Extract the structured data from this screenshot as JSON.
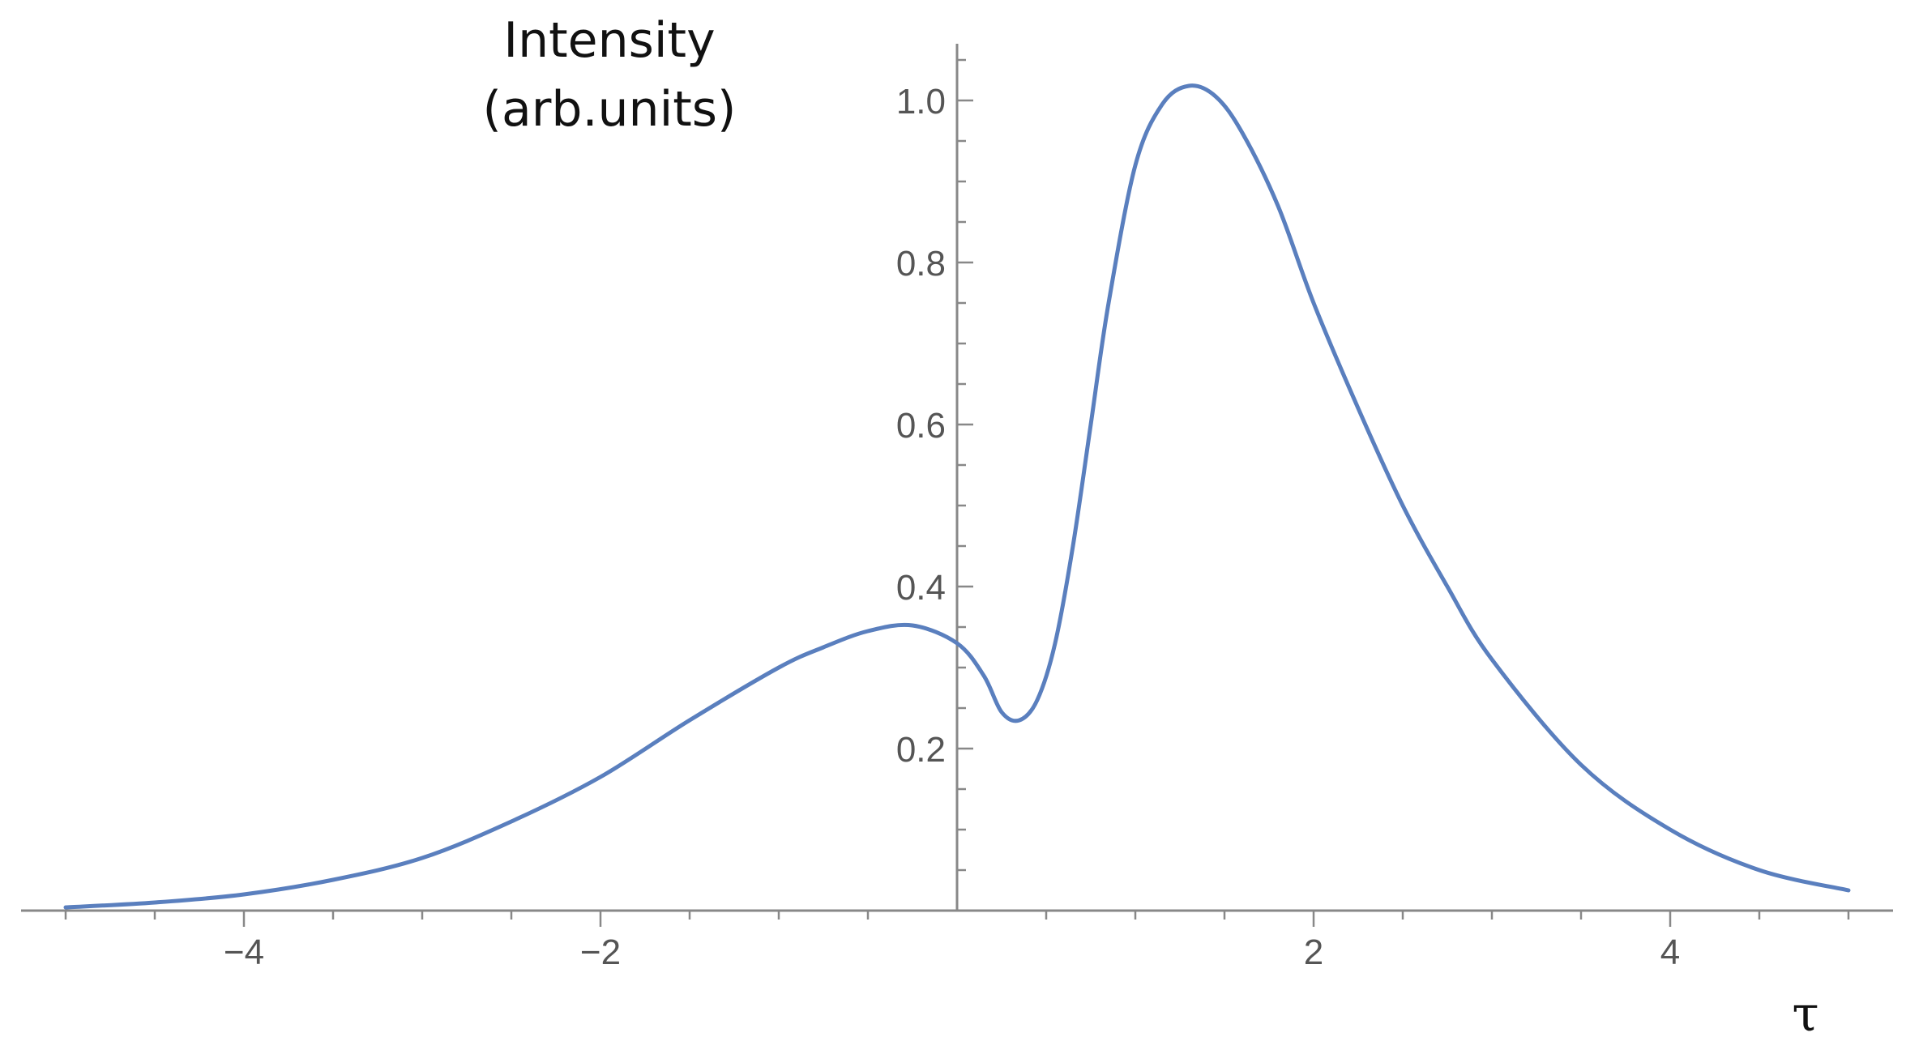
{
  "chart_data": {
    "type": "line",
    "ylabel_line1": "Intensity",
    "ylabel_line2": "(arb.units)",
    "xlabel": "τ",
    "xlim": [
      -5.25,
      5.25
    ],
    "ylim": [
      0,
      1.07
    ],
    "x_ticks": [
      -4,
      -2,
      2,
      4
    ],
    "x_tick_labels": [
      "−4",
      "−2",
      "2",
      "4"
    ],
    "x_minor_step": 0.5,
    "y_ticks": [
      0.2,
      0.4,
      0.6,
      0.8,
      1.0
    ],
    "y_tick_labels": [
      "0.2",
      "0.4",
      "0.6",
      "0.8",
      "1.0"
    ],
    "y_minor_step": 0.05,
    "grid": false,
    "series": [
      {
        "color": "#5a7fbe",
        "x": [
          -5,
          -4.5,
          -4,
          -3.5,
          -3,
          -2.5,
          -2,
          -1.5,
          -1,
          -0.75,
          -0.5,
          -0.25,
          0,
          0.15,
          0.25,
          0.35,
          0.45,
          0.55,
          0.65,
          0.75,
          0.85,
          1,
          1.15,
          1.3,
          1.45,
          1.6,
          1.8,
          2,
          2.25,
          2.5,
          2.75,
          3,
          3.5,
          4,
          4.5,
          5
        ],
        "y": [
          0.004,
          0.01,
          0.02,
          0.038,
          0.065,
          0.11,
          0.165,
          0.235,
          0.3,
          0.325,
          0.345,
          0.352,
          0.33,
          0.29,
          0.245,
          0.235,
          0.26,
          0.33,
          0.45,
          0.6,
          0.75,
          0.92,
          0.995,
          1.018,
          1.005,
          0.96,
          0.87,
          0.75,
          0.62,
          0.5,
          0.4,
          0.31,
          0.18,
          0.1,
          0.05,
          0.025
        ]
      }
    ]
  }
}
